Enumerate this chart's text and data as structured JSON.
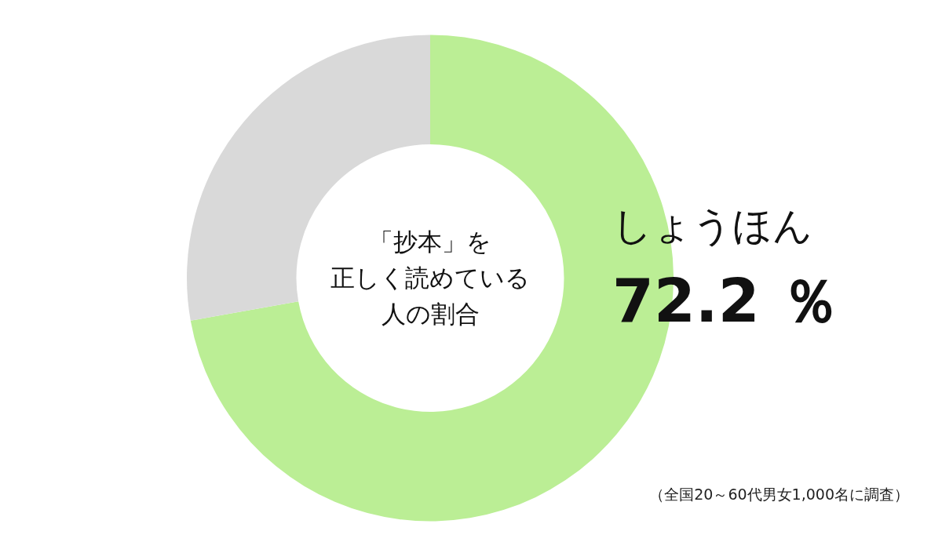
{
  "chart_data": {
    "type": "donut",
    "title": "「抄本」を正しく読めている人の割合",
    "categories": [
      "しょうほん",
      null
    ],
    "values": [
      72.2,
      27.8
    ],
    "colors": [
      "#bbee95",
      "#d9d9d9"
    ],
    "value_labels": [
      "72.2 ％",
      null
    ],
    "legend": false,
    "annotations": [
      "（全国20～60代男女1,000名に調査）"
    ]
  }
}
